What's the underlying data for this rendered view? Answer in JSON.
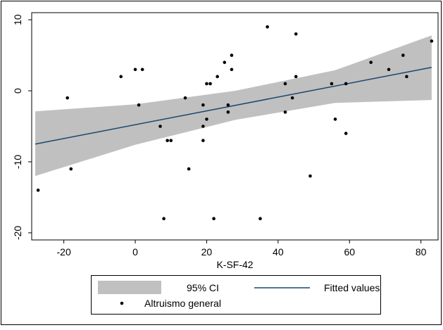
{
  "chart_data": {
    "type": "scatter",
    "x_label": "K-SF-42",
    "xlim": [
      -29,
      84.8
    ],
    "ylim": [
      -21,
      11
    ],
    "xticks": [
      -20,
      0,
      20,
      40,
      60,
      80
    ],
    "yticks": [
      10,
      0,
      -10,
      -20
    ],
    "legend": "bottom",
    "series": [
      {
        "name": "95% CI",
        "type": "area",
        "color": "#c0c0c0",
        "x": [
          -28,
          0,
          28,
          56,
          83
        ],
        "upper": [
          -2.9,
          -1.9,
          0.0,
          2.9,
          7.8
        ],
        "lower": [
          -12.0,
          -7.6,
          -4.1,
          -1.7,
          -1.3
        ]
      },
      {
        "name": "Fitted values",
        "type": "line",
        "color": "#1a476f",
        "x": [
          -28,
          83
        ],
        "values": [
          -7.5,
          3.3
        ]
      },
      {
        "name": "Altruismo general",
        "type": "scatter",
        "color": "#000000",
        "x": [
          -27.2,
          -19,
          -18,
          -4,
          0,
          1,
          2,
          7,
          8,
          9,
          10,
          14,
          15,
          19,
          19,
          19,
          20,
          20,
          21,
          22,
          23,
          25,
          26,
          26,
          27,
          27,
          35,
          37,
          42,
          42,
          44,
          45,
          45,
          49,
          55,
          56,
          59,
          59,
          66,
          71,
          75,
          76,
          83
        ],
        "values": [
          -14,
          -1,
          -11,
          2,
          3,
          -2,
          3,
          -5,
          -18,
          -7,
          -7,
          -1,
          -11,
          -2,
          -5,
          -7,
          -4,
          1,
          1,
          -18,
          2,
          4,
          -2,
          -3,
          5,
          3,
          -18,
          9,
          1,
          -3,
          -1,
          8,
          2,
          -12,
          1,
          -4,
          -6,
          1,
          4,
          3,
          5,
          2,
          7
        ]
      }
    ]
  }
}
